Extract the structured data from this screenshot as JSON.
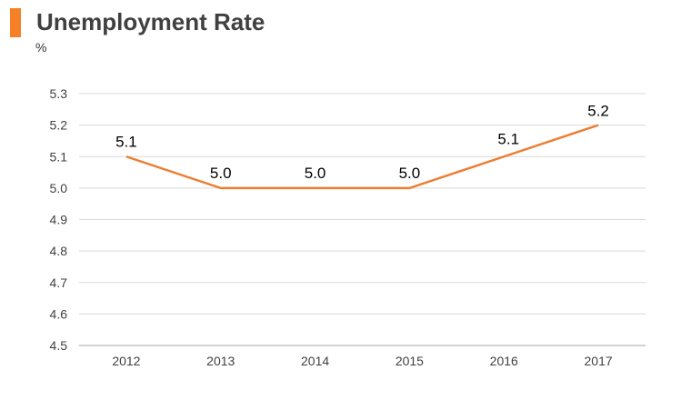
{
  "header": {
    "title": "Unemployment Rate",
    "unit": "%"
  },
  "colors": {
    "accent": "#f58025",
    "line": "#ed7d31",
    "grid": "#d9d9d9",
    "axis": "#a6a6a6"
  },
  "chart_data": {
    "type": "line",
    "title": "Unemployment Rate",
    "ylabel": "%",
    "xlabel": "",
    "categories": [
      "2012",
      "2013",
      "2014",
      "2015",
      "2016",
      "2017"
    ],
    "series": [
      {
        "values": [
          5.1,
          5.0,
          5.0,
          5.0,
          5.1,
          5.2
        ],
        "data_labels": [
          "5.1",
          "5.0",
          "5.0",
          "5.0",
          "5.1",
          "5.2"
        ]
      }
    ],
    "ylim": [
      4.5,
      5.3
    ],
    "yticks": [
      "4.5",
      "4.6",
      "4.7",
      "4.8",
      "4.9",
      "5.0",
      "5.1",
      "5.2",
      "5.3"
    ],
    "grid": true,
    "legend": "none"
  }
}
